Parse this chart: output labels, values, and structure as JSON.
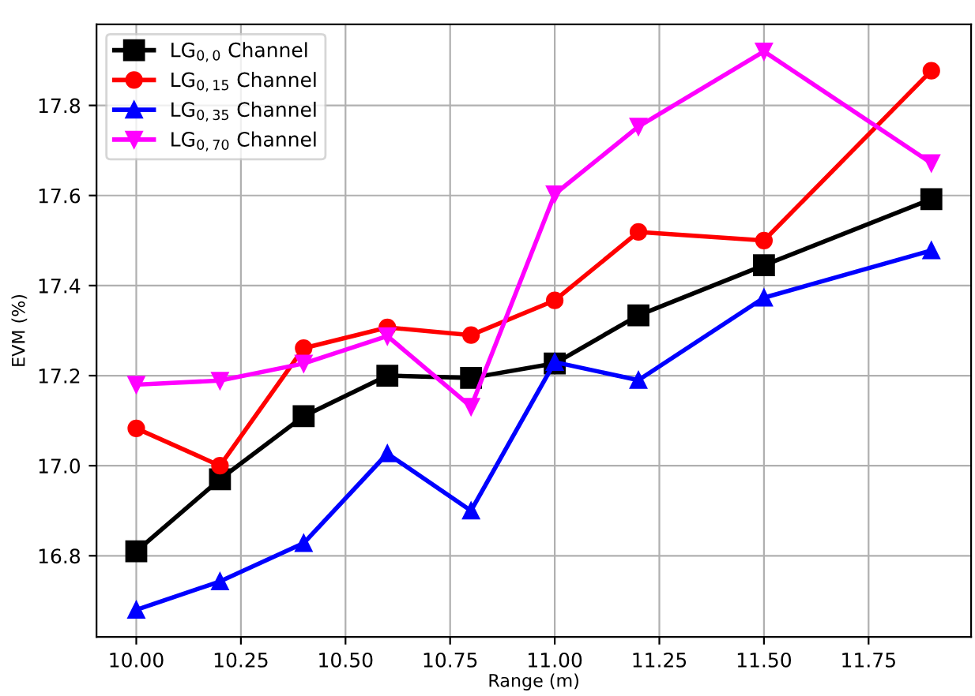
{
  "chart_data": {
    "type": "line",
    "xlabel": "Range (m)",
    "ylabel": "EVM (%)",
    "x": [
      10.0,
      10.2,
      10.4,
      10.6,
      10.8,
      11.0,
      11.2,
      11.5,
      11.9
    ],
    "series": [
      {
        "name": "LG$_{0,0}$ Channel",
        "color": "#000000",
        "marker": "square",
        "values": [
          16.81,
          16.97,
          17.11,
          17.2,
          17.195,
          17.227,
          17.334,
          17.445,
          17.592
        ]
      },
      {
        "name": "LG$_{0,15}$ Channel",
        "color": "#ff0000",
        "marker": "circle",
        "values": [
          17.083,
          17.0,
          17.261,
          17.307,
          17.29,
          17.367,
          17.519,
          17.5,
          17.877
        ]
      },
      {
        "name": "LG$_{0,35}$ Channel",
        "color": "#0000ff",
        "marker": "triangle",
        "values": [
          16.68,
          16.743,
          16.828,
          17.027,
          16.9,
          17.23,
          17.19,
          17.373,
          17.478
        ]
      },
      {
        "name": "LG$_{0,70}$ Channel",
        "color": "#ff00ff",
        "marker": "triangle_down",
        "values": [
          17.18,
          17.189,
          17.227,
          17.288,
          17.131,
          17.603,
          17.753,
          17.92,
          17.672
        ]
      }
    ],
    "xlim": [
      9.905,
      11.995
    ],
    "xticks": [
      {
        "value": 10.0,
        "label": "10.00"
      },
      {
        "value": 10.25,
        "label": "10.25"
      },
      {
        "value": 10.5,
        "label": "10.50"
      },
      {
        "value": 10.75,
        "label": "10.75"
      },
      {
        "value": 11.0,
        "label": "11.00"
      },
      {
        "value": 11.25,
        "label": "11.25"
      },
      {
        "value": 11.5,
        "label": "11.50"
      },
      {
        "value": 11.75,
        "label": "11.75"
      }
    ],
    "ylim": [
      16.62,
      17.98
    ],
    "yticks": [
      {
        "value": 16.8,
        "label": "16.8"
      },
      {
        "value": 17.0,
        "label": "17.0"
      },
      {
        "value": 17.2,
        "label": "17.2"
      },
      {
        "value": 17.4,
        "label": "17.4"
      },
      {
        "value": 17.6,
        "label": "17.6"
      },
      {
        "value": 17.8,
        "label": "17.8"
      }
    ],
    "grid": true,
    "legend": "top left",
    "line_style": "solid"
  }
}
